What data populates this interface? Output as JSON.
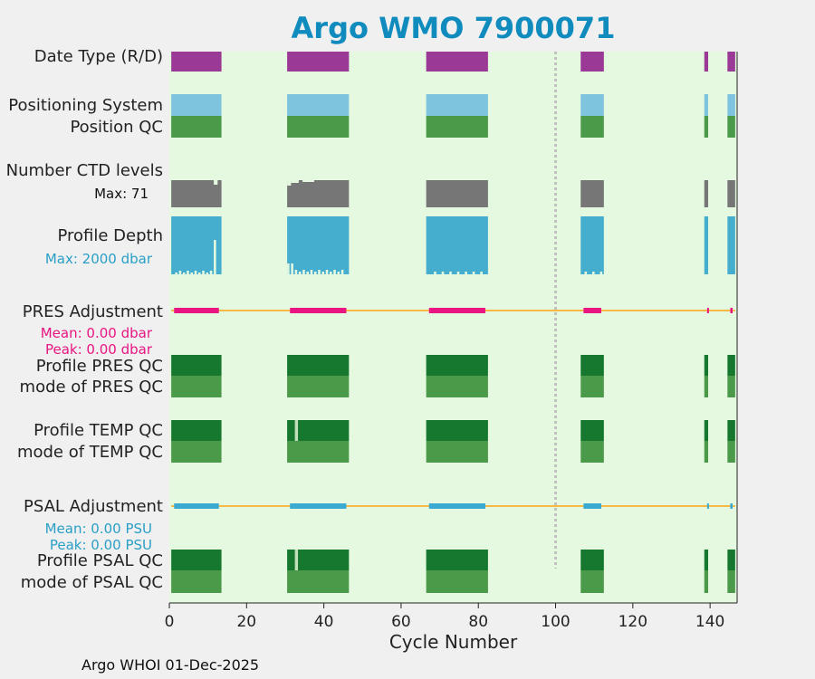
{
  "colors": {
    "background": "#e4f9df",
    "mode_d": "#9b3a96",
    "positioning": "#7fc4de",
    "qc_good_light": "#4a9a4a",
    "qc_good_dark": "#16782e",
    "qc_light_gap": "#bfe0b8",
    "ctd": "#767676",
    "depth": "#45adce",
    "adjust_line": "#f5b944",
    "pres_adjust": "#e81582",
    "psal_adjust": "#3aaad3",
    "title": "#0f8bbd",
    "marker_line": "#c0c0c0"
  },
  "chart_data": {
    "type": "timeline",
    "title": "Argo WMO 7900071",
    "xlabel": "Cycle Number",
    "xlim": [
      0,
      147
    ],
    "xticks": [
      0,
      20,
      40,
      60,
      80,
      100,
      120,
      140
    ],
    "marker_cycle": 100,
    "segments": [
      [
        1,
        13
      ],
      [
        31,
        46
      ],
      [
        67,
        82
      ],
      [
        107,
        112
      ],
      [
        139,
        139
      ],
      [
        145,
        146
      ]
    ],
    "rows": [
      {
        "key": "data_type",
        "label": "Date Type (R/D)",
        "values": "D"
      },
      {
        "key": "positioning_system",
        "label": "Positioning System"
      },
      {
        "key": "position_qc",
        "label": "Position QC"
      },
      {
        "key": "ctd_levels",
        "label": "Number CTD levels",
        "stat": "Max: 71",
        "max_value": 71
      },
      {
        "key": "profile_depth",
        "label": "Profile Depth",
        "stat": "Max: 2000 dbar",
        "max_value": 2000
      },
      {
        "key": "pres_adjustment",
        "label": "PRES Adjustment",
        "stats": [
          "Mean: 0.00 dbar",
          "Peak: 0.00 dbar"
        ],
        "mean": 0.0,
        "peak": 0.0
      },
      {
        "key": "profile_pres_qc",
        "label": "Profile PRES QC"
      },
      {
        "key": "mode_pres_qc",
        "label": "mode of PRES QC"
      },
      {
        "key": "profile_temp_qc",
        "label": "Profile TEMP QC"
      },
      {
        "key": "mode_temp_qc",
        "label": "mode of TEMP QC"
      },
      {
        "key": "psal_adjustment",
        "label": "PSAL Adjustment",
        "stats": [
          "Mean: 0.00 PSU",
          "Peak: 0.00 PSU"
        ],
        "mean": 0.0,
        "peak": 0.0
      },
      {
        "key": "profile_psal_qc",
        "label": "Profile PSAL QC"
      },
      {
        "key": "mode_psal_qc",
        "label": "mode of PSAL QC"
      }
    ],
    "profile_qc_light_cycles": [
      33
    ]
  },
  "footer": "Argo WHOI 01-Dec-2025"
}
